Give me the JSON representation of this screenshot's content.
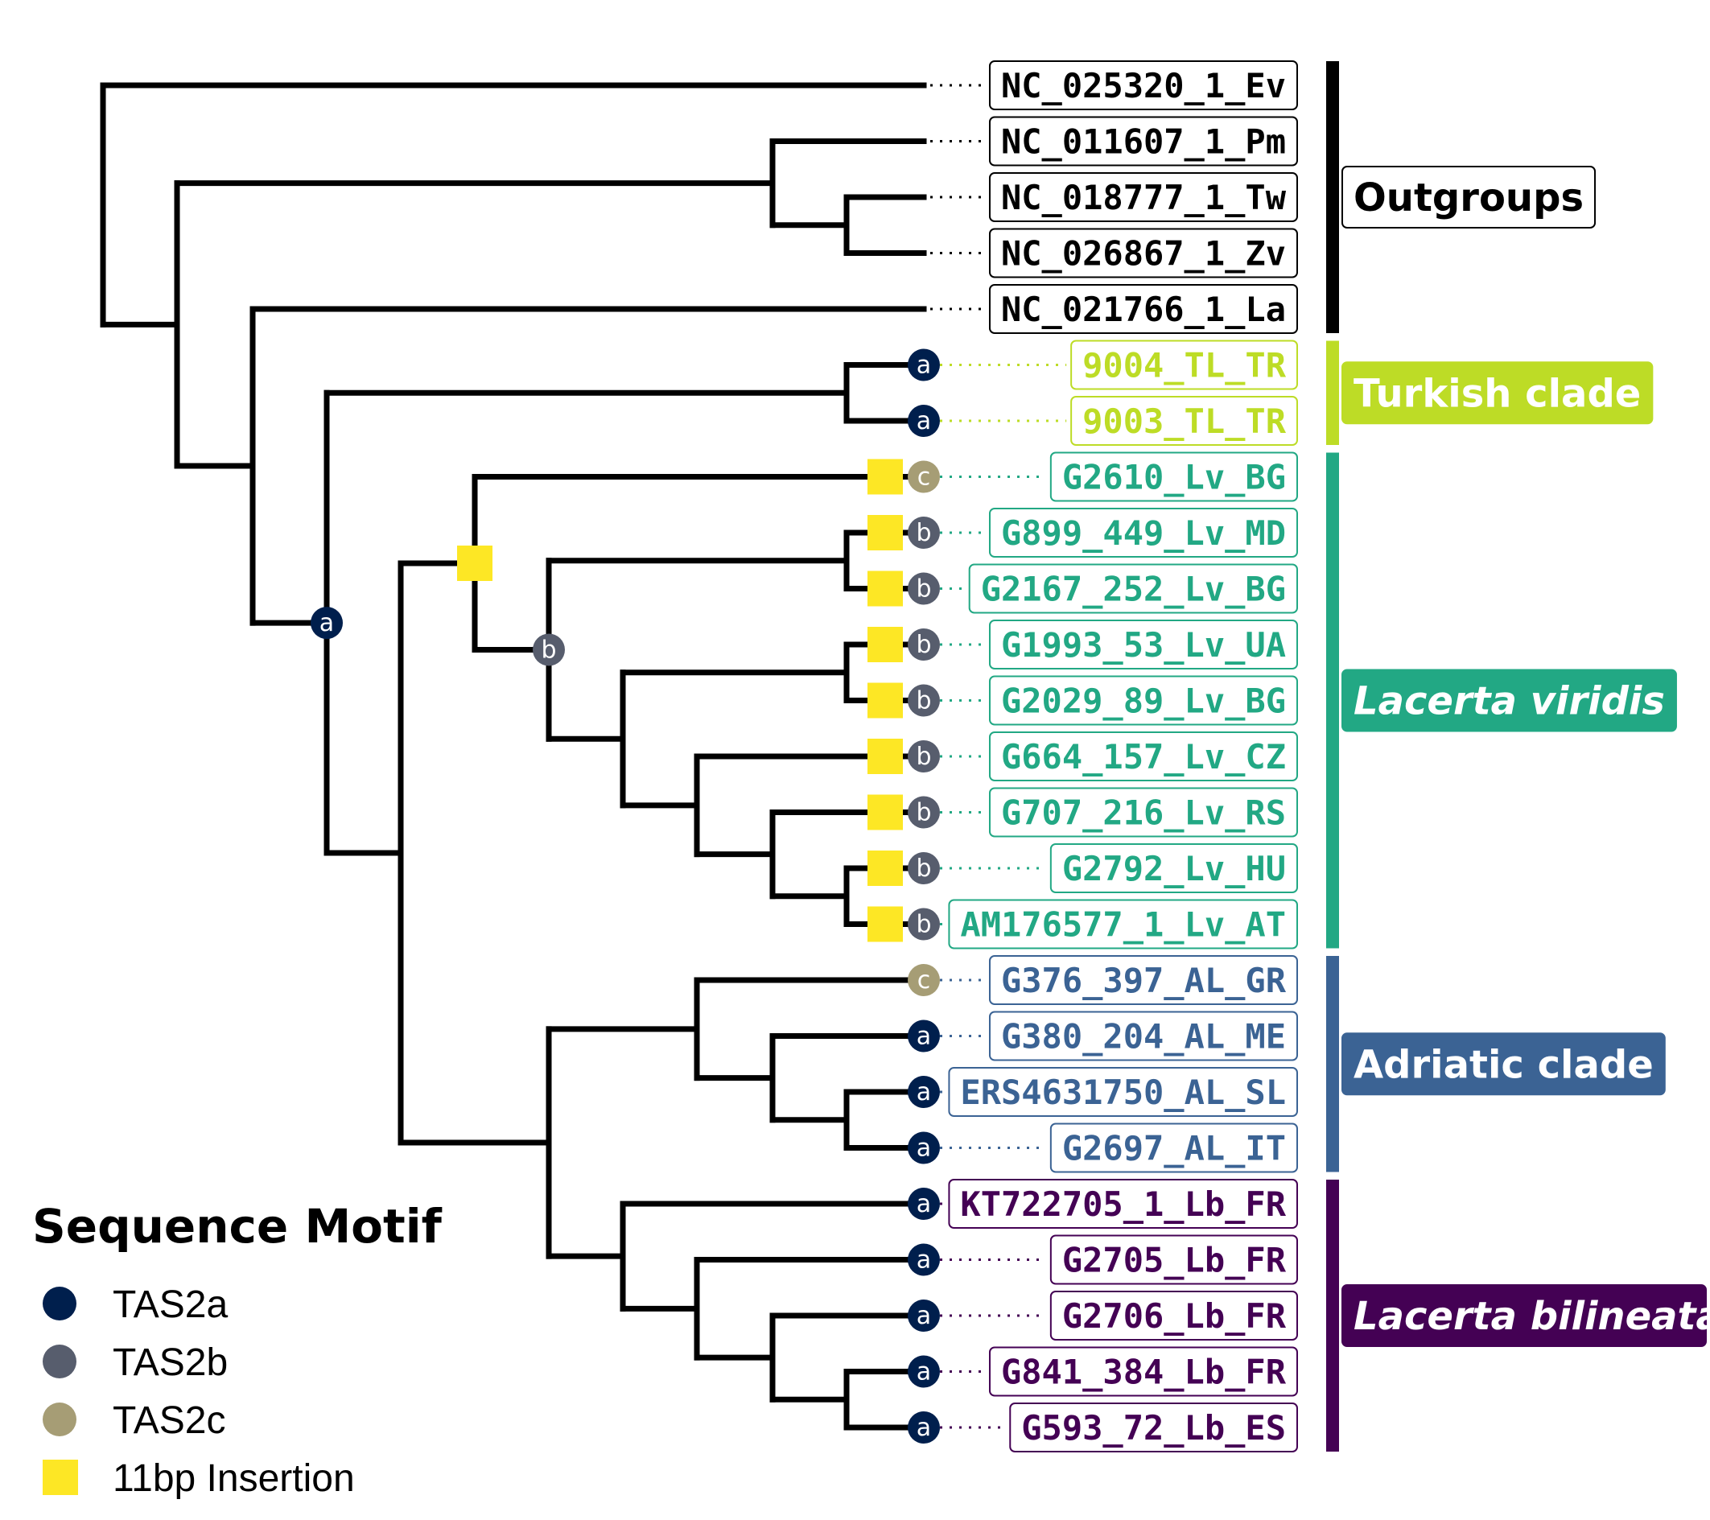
{
  "colors": {
    "black": "#000000",
    "turkish": "#bddc26",
    "viridis": "#22a884",
    "adriatic": "#3b6394",
    "bilineata": "#440154",
    "TAS2a": "#001f4d",
    "TAS2b": "#575d6d",
    "TAS2c": "#a69d75",
    "insertion": "#fde725"
  },
  "tips": [
    {
      "label": "NC_025320_1_Ev",
      "group": "black",
      "motif": "",
      "insertion": false
    },
    {
      "label": "NC_011607_1_Pm",
      "group": "black",
      "motif": "",
      "insertion": false
    },
    {
      "label": "NC_018777_1_Tw",
      "group": "black",
      "motif": "",
      "insertion": false
    },
    {
      "label": "NC_026867_1_Zv",
      "group": "black",
      "motif": "",
      "insertion": false
    },
    {
      "label": "NC_021766_1_La",
      "group": "black",
      "motif": "",
      "insertion": false
    },
    {
      "label": "9004_TL_TR",
      "group": "turkish",
      "motif": "a",
      "insertion": false
    },
    {
      "label": "9003_TL_TR",
      "group": "turkish",
      "motif": "a",
      "insertion": false
    },
    {
      "label": "G2610_Lv_BG",
      "group": "viridis",
      "motif": "c",
      "insertion": true
    },
    {
      "label": "G899_449_Lv_MD",
      "group": "viridis",
      "motif": "b",
      "insertion": true
    },
    {
      "label": "G2167_252_Lv_BG",
      "group": "viridis",
      "motif": "b",
      "insertion": true
    },
    {
      "label": "G1993_53_Lv_UA",
      "group": "viridis",
      "motif": "b",
      "insertion": true
    },
    {
      "label": "G2029_89_Lv_BG",
      "group": "viridis",
      "motif": "b",
      "insertion": true
    },
    {
      "label": "G664_157_Lv_CZ",
      "group": "viridis",
      "motif": "b",
      "insertion": true
    },
    {
      "label": "G707_216_Lv_RS",
      "group": "viridis",
      "motif": "b",
      "insertion": true
    },
    {
      "label": "G2792_Lv_HU",
      "group": "viridis",
      "motif": "b",
      "insertion": true
    },
    {
      "label": "AM176577_1_Lv_AT",
      "group": "viridis",
      "motif": "b",
      "insertion": true
    },
    {
      "label": "G376_397_AL_GR",
      "group": "adriatic",
      "motif": "c",
      "insertion": false
    },
    {
      "label": "G380_204_AL_ME",
      "group": "adriatic",
      "motif": "a",
      "insertion": false
    },
    {
      "label": "ERS4631750_AL_SL",
      "group": "adriatic",
      "motif": "a",
      "insertion": false
    },
    {
      "label": "G2697_AL_IT",
      "group": "adriatic",
      "motif": "a",
      "insertion": false
    },
    {
      "label": "KT722705_1_Lb_FR",
      "group": "bilineata",
      "motif": "a",
      "insertion": false
    },
    {
      "label": "G2705_Lb_FR",
      "group": "bilineata",
      "motif": "a",
      "insertion": false
    },
    {
      "label": "G2706_Lb_FR",
      "group": "bilineata",
      "motif": "a",
      "insertion": false
    },
    {
      "label": "G841_384_Lb_FR",
      "group": "bilineata",
      "motif": "a",
      "insertion": false
    },
    {
      "label": "G593_72_Lb_ES",
      "group": "bilineata",
      "motif": "a",
      "insertion": false
    }
  ],
  "clades": [
    {
      "label": "Outgroups",
      "group": "black",
      "italic": false,
      "from": 0,
      "to": 4
    },
    {
      "label": "Turkish clade",
      "group": "turkish",
      "italic": false,
      "from": 5,
      "to": 6
    },
    {
      "label": "Lacerta viridis",
      "group": "viridis",
      "italic": true,
      "from": 7,
      "to": 15
    },
    {
      "label": "Adriatic clade",
      "group": "adriatic",
      "italic": false,
      "from": 16,
      "to": 19
    },
    {
      "label": "Lacerta bilineata",
      "group": "bilineata",
      "italic": true,
      "from": 20,
      "to": 24
    }
  ],
  "internal_markers": [
    {
      "motif": "a",
      "node": "ingroup"
    },
    {
      "motif": "b",
      "node": "viridis-core"
    },
    {
      "insertion": true,
      "node": "viridis"
    }
  ],
  "legend": {
    "title": "Sequence Motif",
    "items": [
      {
        "label": "TAS2a",
        "key": "TAS2a",
        "shape": "circle"
      },
      {
        "label": "TAS2b",
        "key": "TAS2b",
        "shape": "circle"
      },
      {
        "label": "TAS2c",
        "key": "TAS2c",
        "shape": "circle"
      },
      {
        "label": "11bp Insertion",
        "key": "insertion",
        "shape": "square"
      }
    ]
  }
}
